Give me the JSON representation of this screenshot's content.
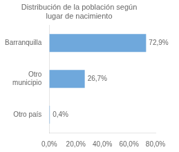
{
  "chart_data": {
    "type": "bar",
    "orientation": "horizontal",
    "title": "Distribución de la población según\nlugar de nacimiento",
    "categories": [
      "Barranquilla",
      "Otro\nmunicipio",
      "Otro país"
    ],
    "values": [
      72.9,
      26.7,
      0.4
    ],
    "value_labels": [
      "72,9%",
      "26,7%",
      "0,4%"
    ],
    "data_labels": true,
    "color": "#6fa8dc",
    "xlim": [
      0,
      80
    ],
    "xticks": [
      {
        "value": 0,
        "label": "0,0%"
      },
      {
        "value": 20,
        "label": "20,0%"
      },
      {
        "value": 40,
        "label": "40,0%"
      },
      {
        "value": 60,
        "label": "60,0%"
      },
      {
        "value": 80,
        "label": "80,0%"
      }
    ],
    "grid": false
  }
}
